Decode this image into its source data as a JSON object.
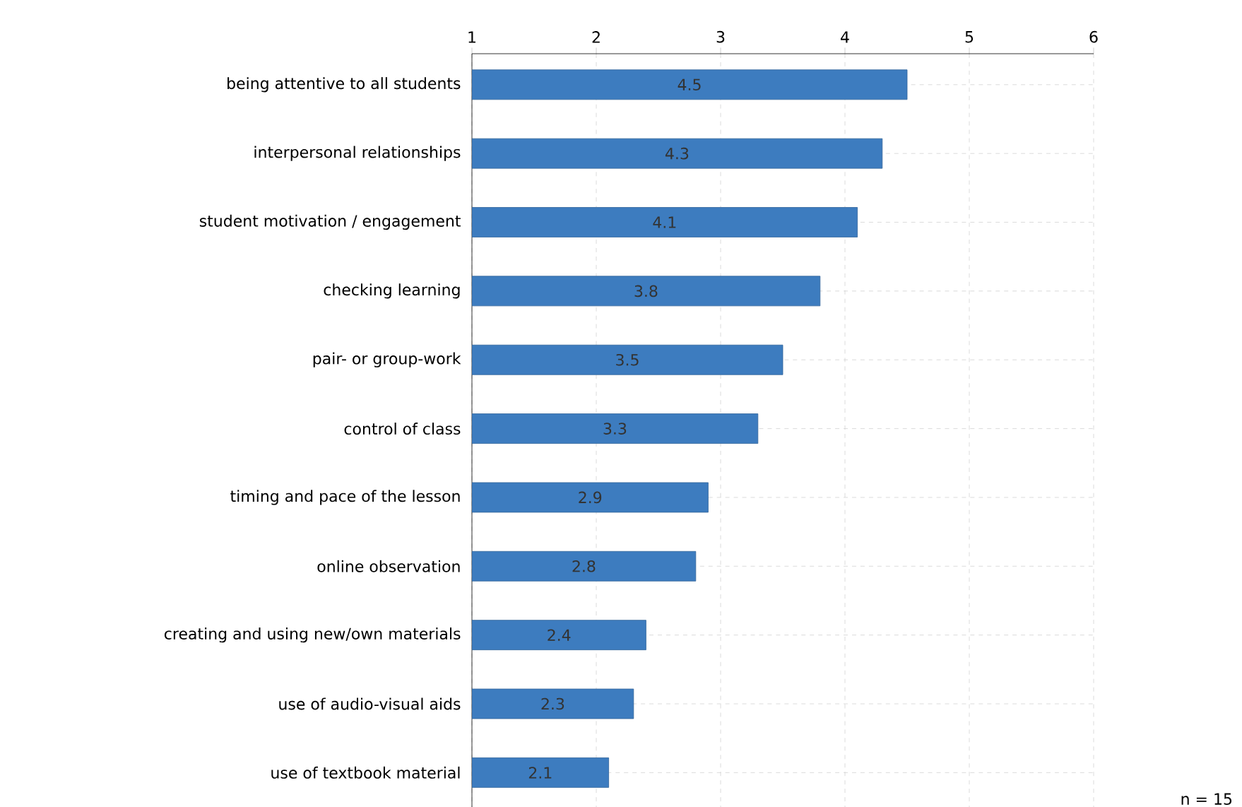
{
  "chart_data": {
    "type": "bar",
    "orientation": "horizontal",
    "categories": [
      "being attentive to all students",
      "interpersonal relationships",
      "student motivation / engagement",
      "checking learning",
      "pair- or group-work",
      "control of class",
      "timing and pace of the lesson",
      "online observation",
      "creating and using new/own materials",
      "use of audio-visual aids",
      "use of textbook material"
    ],
    "values": [
      4.5,
      4.3,
      4.1,
      3.8,
      3.5,
      3.3,
      2.9,
      2.8,
      2.4,
      2.3,
      2.1
    ],
    "color": "#3d7cbf",
    "xlim": [
      1,
      6
    ],
    "xticks": [
      1,
      2,
      3,
      4,
      5,
      6
    ],
    "grid": true,
    "data_labels": true,
    "annotations": [
      "n = 15"
    ]
  }
}
